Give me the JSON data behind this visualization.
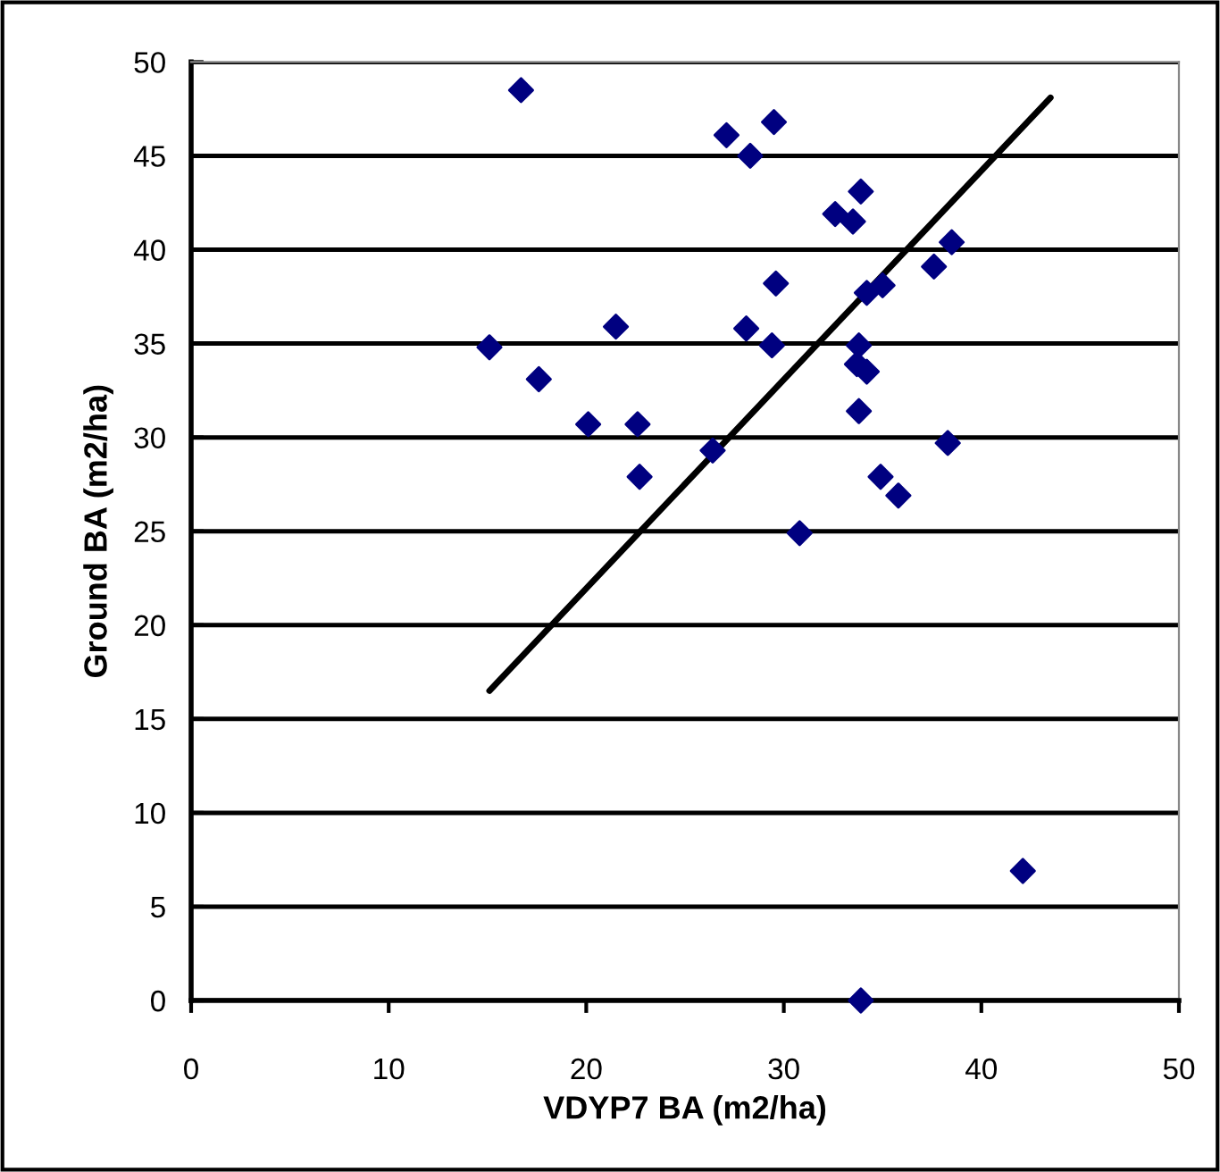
{
  "chart_data": {
    "type": "scatter",
    "xlabel": "VDYP7 BA (m2/ha)",
    "ylabel": "Ground BA (m2/ha)",
    "xlim": [
      0,
      50
    ],
    "xticks": [
      0,
      10,
      20,
      30,
      40,
      50
    ],
    "ylim": [
      0,
      50
    ],
    "yticks": [
      0,
      5,
      10,
      15,
      20,
      25,
      30,
      35,
      40,
      45,
      50
    ],
    "grid": "y",
    "legend": false,
    "series": [
      {
        "color": "#000080",
        "marker": "diamond",
        "x": [
          16.7,
          27.1,
          29.5,
          28.3,
          33.9,
          32.6,
          33.5,
          38.5,
          37.6,
          29.6,
          34.2,
          35.0,
          28.1,
          29.4,
          33.8,
          33.7,
          34.2,
          33.8,
          26.4,
          38.3,
          34.9,
          35.8,
          30.8,
          15.1,
          17.6,
          20.1,
          22.6,
          22.7,
          21.5,
          42.1,
          33.9
        ],
        "values": [
          48.5,
          46.1,
          46.8,
          45.0,
          43.1,
          41.9,
          41.5,
          40.4,
          39.1,
          38.2,
          37.7,
          38.1,
          35.8,
          34.9,
          34.9,
          33.9,
          33.5,
          31.4,
          29.3,
          29.7,
          27.9,
          26.9,
          24.9,
          34.8,
          33.1,
          30.7,
          30.7,
          27.9,
          35.9,
          6.9,
          0
        ]
      },
      {
        "type": "line",
        "color": "#000000",
        "marker": "none",
        "line_style": "solid",
        "x": [
          15.1,
          43.5
        ],
        "values": [
          16.5,
          48.1
        ]
      }
    ]
  }
}
